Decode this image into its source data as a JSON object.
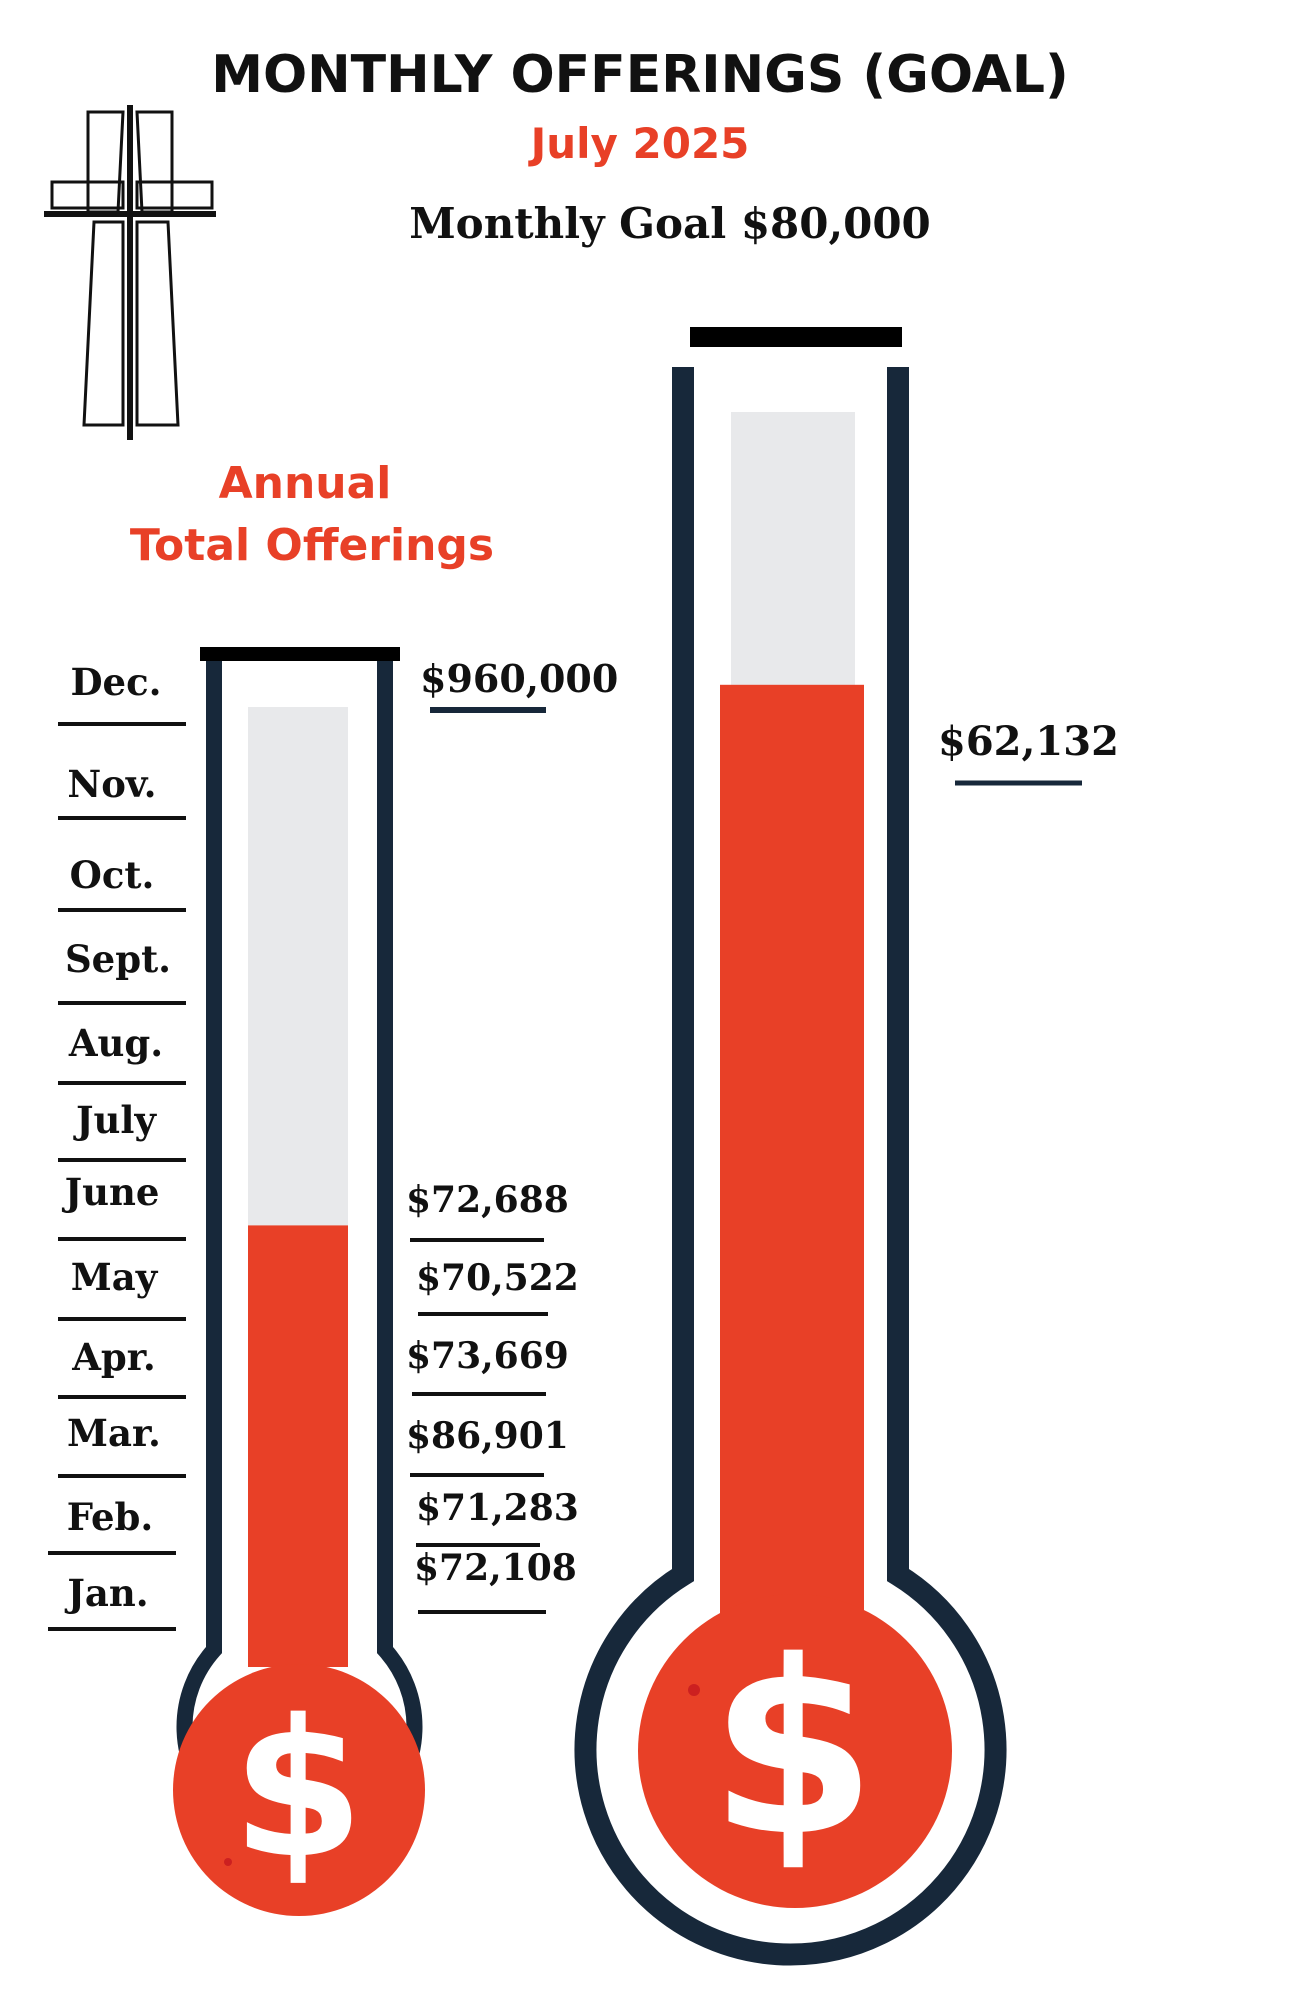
{
  "title": "MONTHLY OFFERINGS (GOAL)",
  "subtitle": "July 2025",
  "goal_text": "Monthly Goal $80,000",
  "annual_heading": [
    "Annual",
    "Total Offerings"
  ],
  "annual_goal_label": "$960,000",
  "annual_fill_fraction": 0.46,
  "monthly_fill_fraction": 0.78,
  "monthly_amount_label": "$62,132",
  "months": [
    "Dec.",
    "Nov.",
    "Oct.",
    "Sept.",
    "Aug.",
    "July",
    "June",
    "May",
    "Apr.",
    "Mar.",
    "Feb.",
    "Jan."
  ],
  "month_amounts": [
    {
      "month": "June",
      "amount": "$72,688"
    },
    {
      "month": "May",
      "amount": "$70,522"
    },
    {
      "month": "Apr.",
      "amount": "$73,669"
    },
    {
      "month": "Mar.",
      "amount": "$86,901"
    },
    {
      "month": "Feb.",
      "amount": "$71,283"
    },
    {
      "month": "Jan.",
      "amount": "$72,108"
    }
  ],
  "dollar_symbol": "$",
  "colors": {
    "accent_red": "#e84027",
    "frame_navy": "#17283a",
    "tube_empty": "#e8e9eb",
    "text_black": "#111111"
  }
}
